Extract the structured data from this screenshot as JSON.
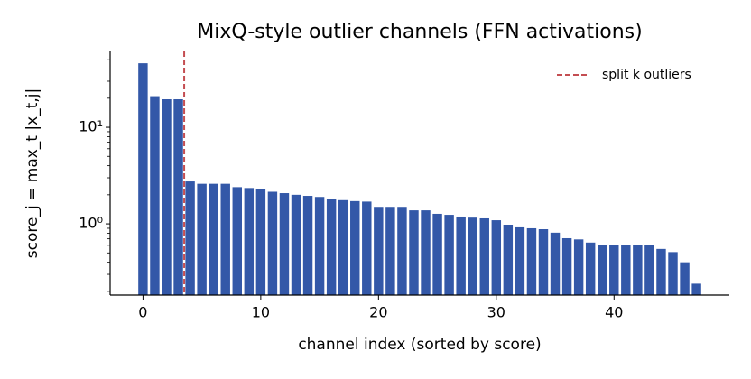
{
  "chart_data": {
    "type": "bar",
    "title": "MixQ-style outlier channels (FFN activations)",
    "xlabel": "channel index (sorted by score)",
    "ylabel": "score_j = max_t |x_t,j|",
    "categories": [
      0,
      1,
      2,
      3,
      4,
      5,
      6,
      7,
      8,
      9,
      10,
      11,
      12,
      13,
      14,
      15,
      16,
      17,
      18,
      19,
      20,
      21,
      22,
      23,
      24,
      25,
      26,
      27,
      28,
      29,
      30,
      31,
      32,
      33,
      34,
      35,
      36,
      37,
      38,
      39,
      40,
      41,
      42,
      43,
      44,
      45,
      46,
      47
    ],
    "values": [
      46,
      21,
      19.5,
      19.5,
      2.75,
      2.6,
      2.6,
      2.6,
      2.4,
      2.35,
      2.3,
      2.15,
      2.08,
      2.0,
      1.95,
      1.9,
      1.8,
      1.76,
      1.72,
      1.7,
      1.5,
      1.5,
      1.5,
      1.38,
      1.38,
      1.27,
      1.24,
      1.19,
      1.16,
      1.14,
      1.09,
      0.98,
      0.92,
      0.9,
      0.88,
      0.81,
      0.71,
      0.69,
      0.64,
      0.61,
      0.61,
      0.6,
      0.6,
      0.6,
      0.55,
      0.51,
      0.4,
      0.24
    ],
    "color": "#3358a8",
    "xlim": [
      -2.79,
      49.79
    ],
    "xticks": [
      0,
      10,
      20,
      30,
      40
    ],
    "ylim": [
      0.183,
      61
    ],
    "yscale": "log",
    "yticks": [
      {
        "value": 1,
        "label": "10⁰"
      },
      {
        "value": 10,
        "label": "10¹"
      }
    ],
    "yminorticks": [
      0.2,
      0.3,
      0.4,
      0.5,
      0.6,
      0.7,
      0.8,
      0.9,
      2,
      3,
      4,
      5,
      6,
      7,
      8,
      9,
      20,
      30,
      40,
      50
    ],
    "vline": {
      "x": 3.5,
      "color": "#c44e52",
      "label": "split k outliers"
    },
    "legend": "upper right"
  }
}
